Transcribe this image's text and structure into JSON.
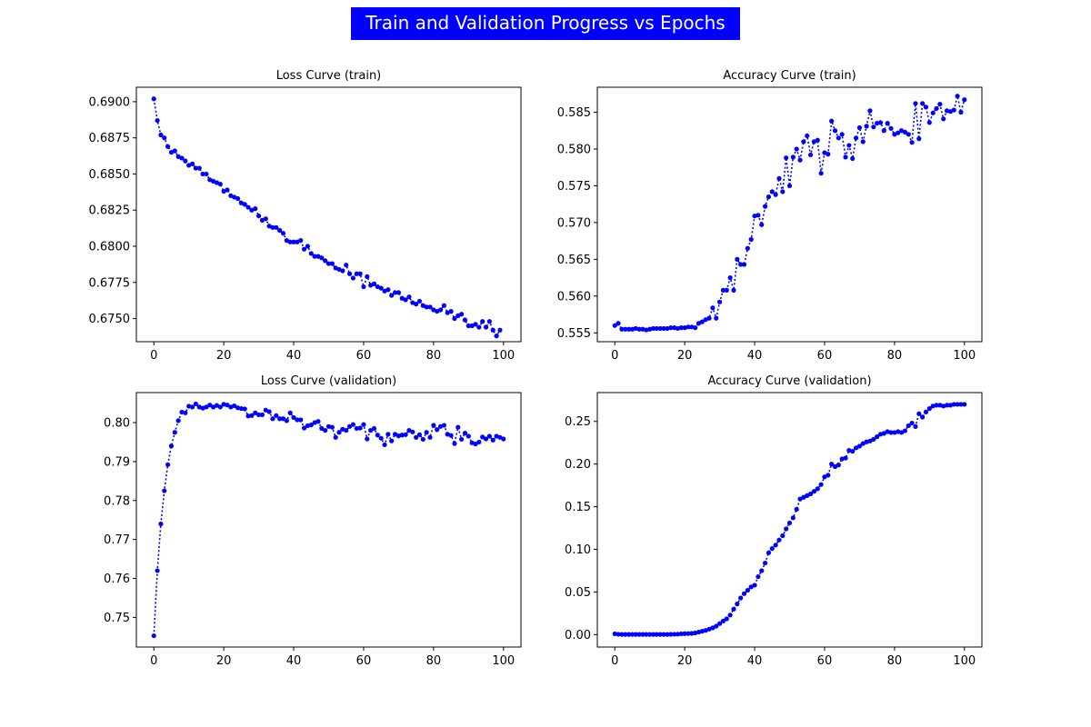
{
  "figure": {
    "title": "Train and Validation Progress vs Epochs",
    "title_background": "#0000ff",
    "title_color": "#ffffff",
    "series_color": "#0000ff"
  },
  "chart_data": [
    {
      "type": "line",
      "title": "Loss Curve (train)",
      "xlabel": "",
      "ylabel": "",
      "marker": "circle",
      "line_style": "dotted",
      "grid": false,
      "xlim": [
        -5,
        105
      ],
      "ylim": [
        0.6734,
        0.691
      ],
      "xticks": [
        0,
        20,
        40,
        60,
        80,
        100
      ],
      "yticks": [
        0.675,
        0.6775,
        0.68,
        0.6825,
        0.685,
        0.6875,
        0.69
      ],
      "ytick_labels": [
        "0.6750",
        "0.6775",
        "0.6800",
        "0.6825",
        "0.6850",
        "0.6875",
        "0.6900"
      ],
      "series": [
        {
          "values": [
            0.6902,
            0.6887,
            0.6877,
            0.6875,
            0.6869,
            0.6865,
            0.6866,
            0.6862,
            0.6861,
            0.6859,
            0.6856,
            0.6857,
            0.6854,
            0.6854,
            0.685,
            0.685,
            0.6846,
            0.6845,
            0.6844,
            0.6843,
            0.6838,
            0.6839,
            0.6835,
            0.6834,
            0.6833,
            0.683,
            0.6829,
            0.6827,
            0.6825,
            0.6826,
            0.6821,
            0.6818,
            0.6819,
            0.6814,
            0.6813,
            0.6813,
            0.6811,
            0.6809,
            0.6804,
            0.6803,
            0.6803,
            0.6803,
            0.6804,
            0.6798,
            0.68,
            0.6795,
            0.6793,
            0.6793,
            0.6792,
            0.679,
            0.6788,
            0.6788,
            0.6785,
            0.6784,
            0.6783,
            0.6787,
            0.6781,
            0.6778,
            0.6781,
            0.6781,
            0.6772,
            0.6779,
            0.6773,
            0.6774,
            0.6772,
            0.6771,
            0.6769,
            0.677,
            0.6766,
            0.6768,
            0.6768,
            0.6764,
            0.6763,
            0.6765,
            0.6761,
            0.676,
            0.6762,
            0.6759,
            0.6758,
            0.6758,
            0.6756,
            0.6755,
            0.6756,
            0.6759,
            0.6754,
            0.6755,
            0.675,
            0.6752,
            0.6753,
            0.6749,
            0.6745,
            0.6745,
            0.6746,
            0.6744,
            0.6748,
            0.6744,
            0.6748,
            0.6742,
            0.6738,
            0.6742
          ]
        }
      ]
    },
    {
      "type": "line",
      "title": "Accuracy Curve (train)",
      "xlabel": "",
      "ylabel": "",
      "marker": "circle",
      "line_style": "dotted",
      "grid": false,
      "xlim": [
        -5,
        105
      ],
      "ylim": [
        0.5538,
        0.5884
      ],
      "xticks": [
        0,
        20,
        40,
        60,
        80,
        100
      ],
      "yticks": [
        0.555,
        0.56,
        0.565,
        0.57,
        0.575,
        0.58,
        0.585
      ],
      "ytick_labels": [
        "0.555",
        "0.560",
        "0.565",
        "0.570",
        "0.575",
        "0.580",
        "0.585"
      ],
      "series": [
        {
          "values": [
            0.556,
            0.5563,
            0.5555,
            0.5555,
            0.5555,
            0.5555,
            0.5556,
            0.5555,
            0.5555,
            0.5554,
            0.5555,
            0.5556,
            0.5556,
            0.5556,
            0.5556,
            0.5556,
            0.5557,
            0.5557,
            0.5556,
            0.5557,
            0.5557,
            0.5558,
            0.5558,
            0.5557,
            0.5563,
            0.5565,
            0.5568,
            0.557,
            0.5584,
            0.557,
            0.5592,
            0.5608,
            0.5608,
            0.5625,
            0.5608,
            0.565,
            0.5643,
            0.5643,
            0.5665,
            0.5677,
            0.5709,
            0.571,
            0.5697,
            0.5722,
            0.5735,
            0.5742,
            0.5738,
            0.576,
            0.5742,
            0.5788,
            0.575,
            0.5789,
            0.58,
            0.5785,
            0.581,
            0.5818,
            0.5792,
            0.581,
            0.5812,
            0.5767,
            0.5795,
            0.5793,
            0.5838,
            0.5825,
            0.5815,
            0.582,
            0.5789,
            0.5805,
            0.5787,
            0.5815,
            0.5829,
            0.581,
            0.5831,
            0.5852,
            0.583,
            0.5835,
            0.5836,
            0.5825,
            0.5835,
            0.5828,
            0.582,
            0.5822,
            0.5825,
            0.5823,
            0.582,
            0.5809,
            0.5862,
            0.5814,
            0.5862,
            0.5857,
            0.5836,
            0.5849,
            0.5855,
            0.5861,
            0.5841,
            0.5852,
            0.5851,
            0.5853,
            0.5872,
            0.585,
            0.5867
          ]
        }
      ]
    },
    {
      "type": "line",
      "title": "Loss Curve (validation)",
      "xlabel": "",
      "ylabel": "",
      "marker": "circle",
      "line_style": "dotted",
      "grid": false,
      "xlim": [
        -5,
        105
      ],
      "ylim": [
        0.7424,
        0.8077
      ],
      "xticks": [
        0,
        20,
        40,
        60,
        80,
        100
      ],
      "yticks": [
        0.75,
        0.76,
        0.77,
        0.78,
        0.79,
        0.8
      ],
      "ytick_labels": [
        "0.75",
        "0.76",
        "0.77",
        "0.78",
        "0.79",
        "0.80"
      ],
      "series": [
        {
          "values": [
            0.7453,
            0.762,
            0.774,
            0.7825,
            0.7892,
            0.794,
            0.7975,
            0.8005,
            0.8027,
            0.8025,
            0.8042,
            0.804,
            0.8048,
            0.804,
            0.8037,
            0.804,
            0.8045,
            0.804,
            0.8044,
            0.804,
            0.8047,
            0.8045,
            0.804,
            0.8043,
            0.8038,
            0.8036,
            0.8035,
            0.8017,
            0.8018,
            0.8025,
            0.802,
            0.802,
            0.8032,
            0.8028,
            0.801,
            0.8018,
            0.801,
            0.801,
            0.8005,
            0.8025,
            0.8013,
            0.8007,
            0.8007,
            0.7986,
            0.7992,
            0.7994,
            0.8,
            0.8003,
            0.7985,
            0.798,
            0.799,
            0.7988,
            0.7962,
            0.7975,
            0.7983,
            0.798,
            0.799,
            0.7995,
            0.7985,
            0.7986,
            0.7995,
            0.7958,
            0.798,
            0.7985,
            0.7968,
            0.796,
            0.7943,
            0.797,
            0.7953,
            0.797,
            0.7966,
            0.7968,
            0.7969,
            0.798,
            0.7976,
            0.7962,
            0.7969,
            0.7957,
            0.7975,
            0.7962,
            0.7993,
            0.7982,
            0.799,
            0.7993,
            0.797,
            0.7967,
            0.7946,
            0.7988,
            0.7957,
            0.7973,
            0.7965,
            0.7948,
            0.7945,
            0.795,
            0.7963,
            0.7958,
            0.7965,
            0.7955,
            0.7965,
            0.7962,
            0.7958
          ]
        }
      ]
    },
    {
      "type": "line",
      "title": "Accuracy Curve (validation)",
      "xlabel": "",
      "ylabel": "",
      "marker": "circle",
      "line_style": "dotted",
      "grid": false,
      "xlim": [
        -5,
        105
      ],
      "ylim": [
        -0.0145,
        0.2838
      ],
      "xticks": [
        0,
        20,
        40,
        60,
        80,
        100
      ],
      "yticks": [
        0.0,
        0.05,
        0.1,
        0.15,
        0.2,
        0.25
      ],
      "ytick_labels": [
        "0.00",
        "0.05",
        "0.10",
        "0.15",
        "0.20",
        "0.25"
      ],
      "series": [
        {
          "values": [
            0.001,
            0.0005,
            0.0003,
            0.0003,
            0.0003,
            0.0003,
            0.0003,
            0.0003,
            0.0003,
            0.0003,
            0.0003,
            0.0003,
            0.0003,
            0.0003,
            0.0003,
            0.0003,
            0.0004,
            0.0005,
            0.0006,
            0.001,
            0.0012,
            0.0013,
            0.0015,
            0.002,
            0.003,
            0.004,
            0.005,
            0.0065,
            0.008,
            0.01,
            0.013,
            0.016,
            0.0185,
            0.023,
            0.03,
            0.036,
            0.043,
            0.048,
            0.052,
            0.056,
            0.058,
            0.068,
            0.075,
            0.084,
            0.096,
            0.101,
            0.105,
            0.111,
            0.116,
            0.124,
            0.131,
            0.137,
            0.147,
            0.159,
            0.161,
            0.163,
            0.165,
            0.168,
            0.171,
            0.176,
            0.185,
            0.187,
            0.2,
            0.197,
            0.199,
            0.206,
            0.207,
            0.216,
            0.215,
            0.219,
            0.221,
            0.224,
            0.226,
            0.227,
            0.229,
            0.232,
            0.235,
            0.236,
            0.238,
            0.237,
            0.237,
            0.238,
            0.237,
            0.239,
            0.245,
            0.248,
            0.244,
            0.259,
            0.255,
            0.261,
            0.265,
            0.268,
            0.269,
            0.269,
            0.268,
            0.269,
            0.269,
            0.27,
            0.27,
            0.27,
            0.27
          ]
        }
      ]
    }
  ]
}
